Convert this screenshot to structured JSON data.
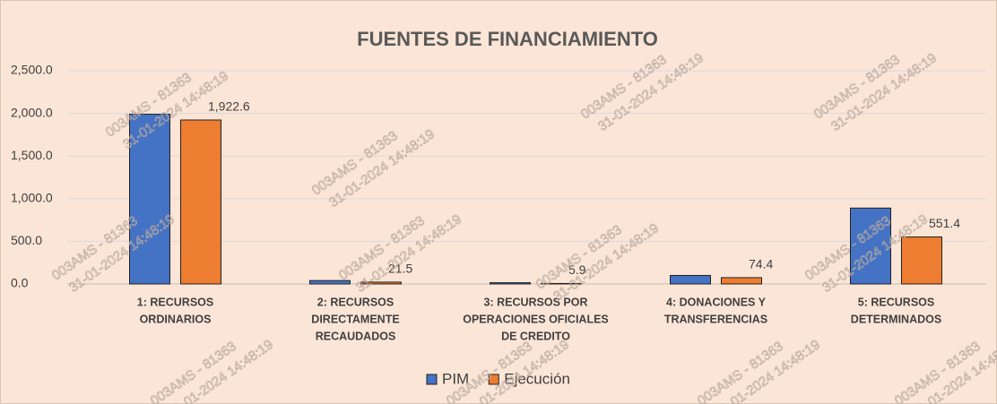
{
  "chart_data": {
    "type": "bar",
    "title": "FUENTES DE FINANCIAMIENTO",
    "categories": [
      [
        "1: RECURSOS",
        "ORDINARIOS"
      ],
      [
        "2: RECURSOS",
        "DIRECTAMENTE",
        "RECAUDADOS"
      ],
      [
        "3: RECURSOS POR",
        "OPERACIONES OFICIALES",
        "DE CREDITO"
      ],
      [
        "4: DONACIONES Y",
        "TRANSFERENCIAS"
      ],
      [
        "5: RECURSOS",
        "DETERMINADOS"
      ]
    ],
    "series": [
      {
        "name": "PIM",
        "color": "#4472c4",
        "values": [
          1990,
          40,
          15,
          100,
          890
        ]
      },
      {
        "name": "Ejecución",
        "color": "#ed7d31",
        "values": [
          1922.6,
          21.5,
          5.9,
          74.4,
          551.4
        ],
        "value_labels": [
          "1,922.6",
          "21.5",
          "5.9",
          "74.4",
          "551.4"
        ]
      }
    ],
    "ylim": [
      0,
      2500
    ],
    "yticks": [
      {
        "value": 0,
        "label": "0.0"
      },
      {
        "value": 500,
        "label": "500.0"
      },
      {
        "value": 1000,
        "label": "1,000.0"
      },
      {
        "value": 1500,
        "label": "1,500.0"
      },
      {
        "value": 2000,
        "label": "2,000.0"
      },
      {
        "value": 2500,
        "label": "2,500.0"
      }
    ],
    "grid": true,
    "legend": "bottom",
    "watermark": [
      "003AMS - 81363",
      "31-01-2024 14:48:19"
    ]
  }
}
